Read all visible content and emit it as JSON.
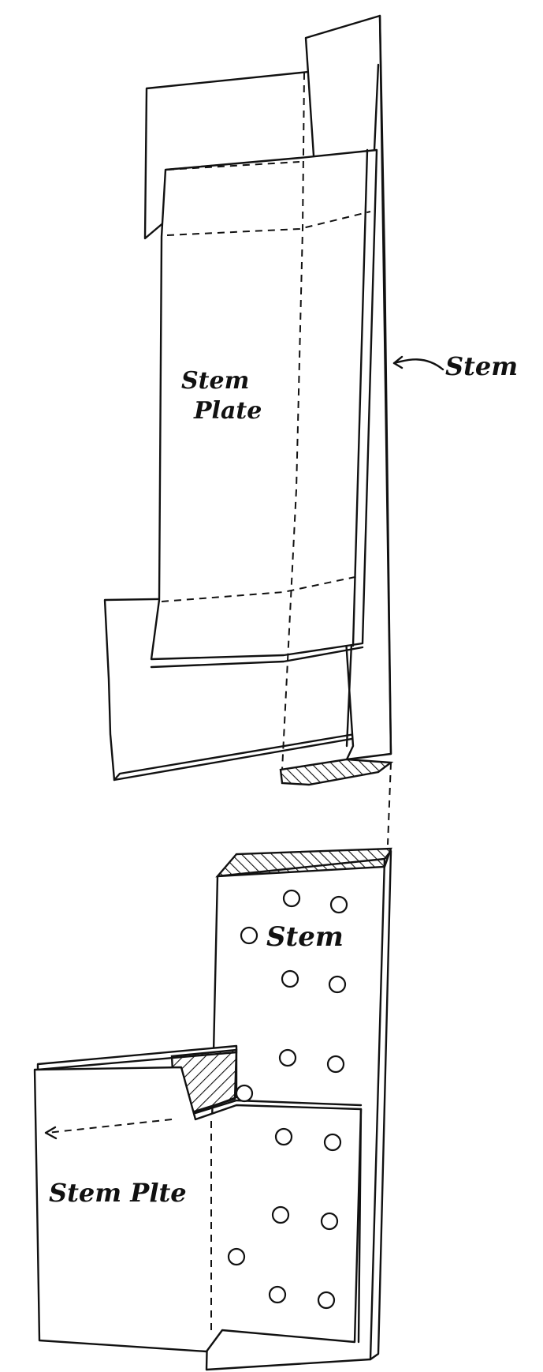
{
  "labels": {
    "upper_stem_plate_line1": "Stem",
    "upper_stem_plate_line2": "Plate",
    "upper_stem": "Stem",
    "lower_stem": "Stem",
    "lower_stem_plate": "Stem Plte"
  },
  "colors": {
    "ink": "#111111",
    "paper": "#ffffff"
  }
}
